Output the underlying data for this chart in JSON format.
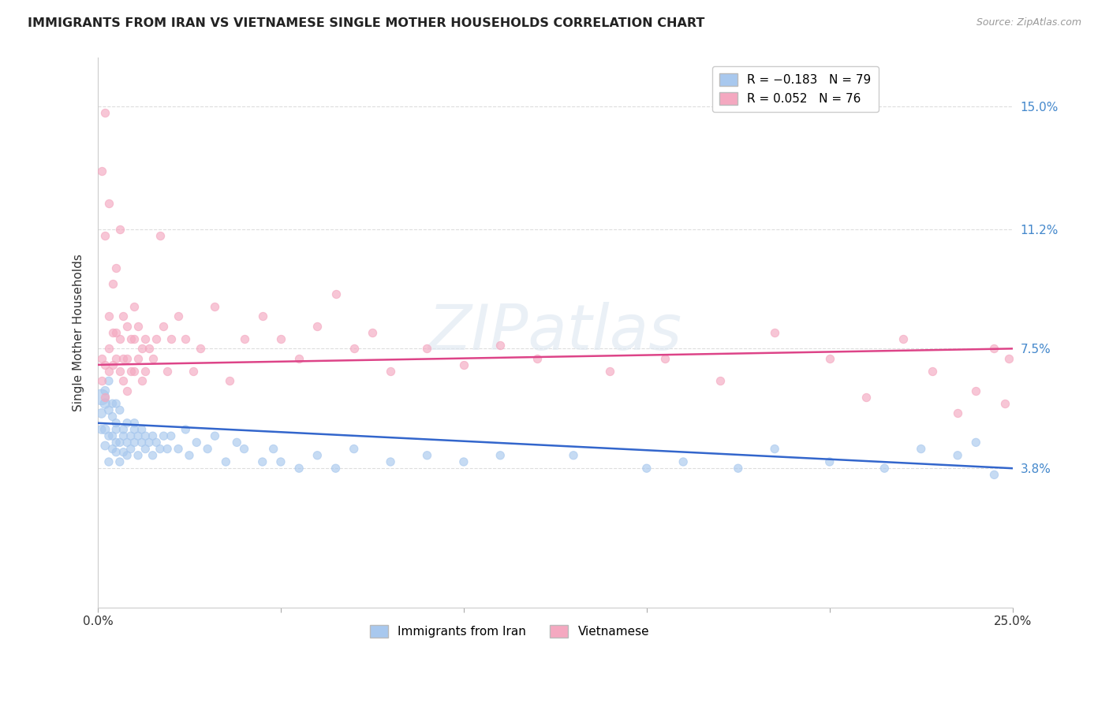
{
  "title": "IMMIGRANTS FROM IRAN VS VIETNAMESE SINGLE MOTHER HOUSEHOLDS CORRELATION CHART",
  "source_text": "Source: ZipAtlas.com",
  "ylabel": "Single Mother Households",
  "ylabel_tick_vals": [
    0.038,
    0.075,
    0.112,
    0.15
  ],
  "ylabel_ticks": [
    "3.8%",
    "7.5%",
    "11.2%",
    "15.0%"
  ],
  "x_min": 0.0,
  "x_max": 0.25,
  "y_min": -0.005,
  "y_max": 0.165,
  "watermark": "ZIPatlas",
  "blue_color": "#a8c8ee",
  "pink_color": "#f4a8c0",
  "blue_line_color": "#3366cc",
  "pink_line_color": "#dd4488",
  "grid_color": "#dddddd",
  "background_color": "#ffffff",
  "iran_scatter_x": [
    0.001,
    0.001,
    0.001,
    0.002,
    0.002,
    0.002,
    0.002,
    0.003,
    0.003,
    0.003,
    0.003,
    0.004,
    0.004,
    0.004,
    0.004,
    0.005,
    0.005,
    0.005,
    0.005,
    0.005,
    0.006,
    0.006,
    0.006,
    0.007,
    0.007,
    0.007,
    0.008,
    0.008,
    0.008,
    0.009,
    0.009,
    0.01,
    0.01,
    0.01,
    0.011,
    0.011,
    0.012,
    0.012,
    0.013,
    0.013,
    0.014,
    0.015,
    0.015,
    0.016,
    0.017,
    0.018,
    0.019,
    0.02,
    0.022,
    0.024,
    0.025,
    0.027,
    0.03,
    0.032,
    0.035,
    0.038,
    0.04,
    0.045,
    0.048,
    0.05,
    0.055,
    0.06,
    0.065,
    0.07,
    0.08,
    0.09,
    0.1,
    0.11,
    0.13,
    0.15,
    0.16,
    0.175,
    0.185,
    0.2,
    0.215,
    0.225,
    0.235,
    0.24,
    0.245
  ],
  "iran_scatter_y": [
    0.06,
    0.055,
    0.05,
    0.058,
    0.05,
    0.045,
    0.062,
    0.056,
    0.048,
    0.065,
    0.04,
    0.054,
    0.048,
    0.058,
    0.044,
    0.05,
    0.058,
    0.043,
    0.052,
    0.046,
    0.056,
    0.046,
    0.04,
    0.05,
    0.043,
    0.048,
    0.052,
    0.046,
    0.042,
    0.048,
    0.044,
    0.05,
    0.046,
    0.052,
    0.048,
    0.042,
    0.046,
    0.05,
    0.044,
    0.048,
    0.046,
    0.048,
    0.042,
    0.046,
    0.044,
    0.048,
    0.044,
    0.048,
    0.044,
    0.05,
    0.042,
    0.046,
    0.044,
    0.048,
    0.04,
    0.046,
    0.044,
    0.04,
    0.044,
    0.04,
    0.038,
    0.042,
    0.038,
    0.044,
    0.04,
    0.042,
    0.04,
    0.042,
    0.042,
    0.038,
    0.04,
    0.038,
    0.044,
    0.04,
    0.038,
    0.044,
    0.042,
    0.046,
    0.036
  ],
  "iran_scatter_size": [
    200,
    70,
    60,
    80,
    70,
    60,
    60,
    60,
    55,
    55,
    55,
    55,
    55,
    55,
    55,
    55,
    55,
    55,
    55,
    55,
    55,
    55,
    55,
    55,
    55,
    55,
    55,
    55,
    55,
    55,
    55,
    55,
    55,
    55,
    55,
    55,
    55,
    55,
    55,
    55,
    55,
    55,
    55,
    55,
    55,
    55,
    55,
    55,
    55,
    55,
    55,
    55,
    55,
    55,
    55,
    55,
    55,
    55,
    55,
    55,
    55,
    55,
    55,
    55,
    55,
    55,
    55,
    55,
    55,
    55,
    55,
    55,
    55,
    55,
    55,
    55,
    55,
    55,
    55
  ],
  "viet_scatter_x": [
    0.001,
    0.001,
    0.001,
    0.002,
    0.002,
    0.002,
    0.002,
    0.003,
    0.003,
    0.003,
    0.003,
    0.004,
    0.004,
    0.004,
    0.005,
    0.005,
    0.005,
    0.006,
    0.006,
    0.006,
    0.007,
    0.007,
    0.007,
    0.008,
    0.008,
    0.008,
    0.009,
    0.009,
    0.01,
    0.01,
    0.01,
    0.011,
    0.011,
    0.012,
    0.012,
    0.013,
    0.013,
    0.014,
    0.015,
    0.016,
    0.017,
    0.018,
    0.019,
    0.02,
    0.022,
    0.024,
    0.026,
    0.028,
    0.032,
    0.036,
    0.04,
    0.045,
    0.05,
    0.055,
    0.06,
    0.065,
    0.07,
    0.075,
    0.08,
    0.09,
    0.1,
    0.11,
    0.12,
    0.14,
    0.155,
    0.17,
    0.185,
    0.2,
    0.21,
    0.22,
    0.228,
    0.235,
    0.24,
    0.245,
    0.248,
    0.249
  ],
  "viet_scatter_y": [
    0.13,
    0.072,
    0.065,
    0.148,
    0.11,
    0.07,
    0.06,
    0.12,
    0.085,
    0.075,
    0.068,
    0.095,
    0.08,
    0.07,
    0.1,
    0.08,
    0.072,
    0.112,
    0.078,
    0.068,
    0.085,
    0.072,
    0.065,
    0.082,
    0.072,
    0.062,
    0.078,
    0.068,
    0.088,
    0.078,
    0.068,
    0.082,
    0.072,
    0.075,
    0.065,
    0.078,
    0.068,
    0.075,
    0.072,
    0.078,
    0.11,
    0.082,
    0.068,
    0.078,
    0.085,
    0.078,
    0.068,
    0.075,
    0.088,
    0.065,
    0.078,
    0.085,
    0.078,
    0.072,
    0.082,
    0.092,
    0.075,
    0.08,
    0.068,
    0.075,
    0.07,
    0.076,
    0.072,
    0.068,
    0.072,
    0.065,
    0.08,
    0.072,
    0.06,
    0.078,
    0.068,
    0.055,
    0.062,
    0.075,
    0.058,
    0.072
  ],
  "iran_line_x": [
    0.0,
    0.25
  ],
  "iran_line_y": [
    0.052,
    0.038
  ],
  "viet_line_x": [
    0.0,
    0.25
  ],
  "viet_line_y": [
    0.07,
    0.075
  ]
}
